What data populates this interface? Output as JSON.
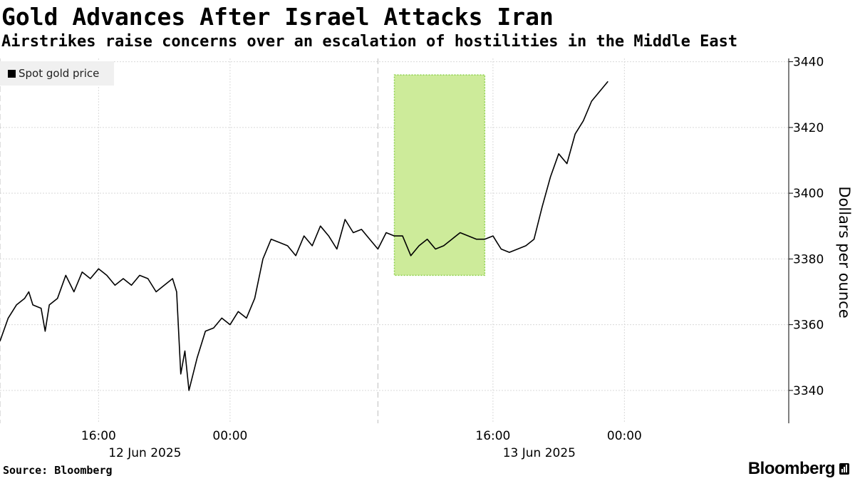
{
  "header": {
    "title": "Gold Advances After Israel Attacks Iran",
    "subtitle": "Airstrikes raise concerns over an escalation of hostilities in the Middle East"
  },
  "legend": {
    "label": "Spot gold price"
  },
  "footer": {
    "source": "Source: Bloomberg",
    "brand": "Bloomberg"
  },
  "colors": {
    "line": "#000000",
    "highlight_fill": "#cdeb9a",
    "highlight_border": "#8fd14f",
    "grid": "#d9d9d9"
  },
  "chart_data": {
    "type": "line",
    "title": "Gold Advances After Israel Attacks Iran",
    "subtitle": "Airstrikes raise concerns over an escalation of hostilities in the Middle East",
    "ylabel": "Dollars per ounce",
    "y_axis_side": "right",
    "ylim": [
      3330,
      3441
    ],
    "yticks": [
      3340,
      3360,
      3380,
      3400,
      3420,
      3440
    ],
    "x_start": "2025-06-11T10:00",
    "x_end": "2025-06-13T10:00",
    "xticks": [
      {
        "x": "2025-06-11T16:00",
        "label": "16:00",
        "sublabel": "12 Jun 2025"
      },
      {
        "x": "2025-06-12T00:00",
        "label": "00:00",
        "sublabel": ""
      },
      {
        "x": "2025-06-12T16:00",
        "label": "16:00",
        "sublabel": "13 Jun 2025"
      },
      {
        "x": "2025-06-13T00:00",
        "label": "00:00",
        "sublabel": ""
      }
    ],
    "session_dividers": [
      "2025-06-11T10:00",
      "2025-06-12T09:00"
    ],
    "highlight": {
      "x_start": "2025-06-12T10:00",
      "x_end": "2025-06-12T15:30",
      "y_start": 3375,
      "y_end": 3436
    },
    "legend_position": "top-left",
    "grid": true,
    "series": [
      {
        "name": "Spot gold price",
        "points": [
          [
            "2025-06-11T10:00",
            3355
          ],
          [
            "2025-06-11T10:30",
            3362
          ],
          [
            "2025-06-11T11:00",
            3366
          ],
          [
            "2025-06-11T11:30",
            3368
          ],
          [
            "2025-06-11T11:45",
            3370
          ],
          [
            "2025-06-11T12:00",
            3366
          ],
          [
            "2025-06-11T12:30",
            3365
          ],
          [
            "2025-06-11T12:45",
            3358
          ],
          [
            "2025-06-11T13:00",
            3366
          ],
          [
            "2025-06-11T13:30",
            3368
          ],
          [
            "2025-06-11T14:00",
            3375
          ],
          [
            "2025-06-11T14:30",
            3370
          ],
          [
            "2025-06-11T15:00",
            3376
          ],
          [
            "2025-06-11T15:30",
            3374
          ],
          [
            "2025-06-11T16:00",
            3377
          ],
          [
            "2025-06-11T16:30",
            3375
          ],
          [
            "2025-06-11T17:00",
            3372
          ],
          [
            "2025-06-11T17:30",
            3374
          ],
          [
            "2025-06-11T18:00",
            3372
          ],
          [
            "2025-06-11T18:30",
            3375
          ],
          [
            "2025-06-11T19:00",
            3374
          ],
          [
            "2025-06-11T19:30",
            3370
          ],
          [
            "2025-06-11T20:00",
            3372
          ],
          [
            "2025-06-11T20:30",
            3374
          ],
          [
            "2025-06-11T20:45",
            3370
          ],
          [
            "2025-06-11T21:00",
            3345
          ],
          [
            "2025-06-11T21:15",
            3352
          ],
          [
            "2025-06-11T21:30",
            3340
          ],
          [
            "2025-06-11T21:45",
            3345
          ],
          [
            "2025-06-11T22:00",
            3350
          ],
          [
            "2025-06-11T22:30",
            3358
          ],
          [
            "2025-06-11T23:00",
            3359
          ],
          [
            "2025-06-11T23:30",
            3362
          ],
          [
            "2025-06-12T00:00",
            3360
          ],
          [
            "2025-06-12T00:30",
            3364
          ],
          [
            "2025-06-12T01:00",
            3362
          ],
          [
            "2025-06-12T01:30",
            3368
          ],
          [
            "2025-06-12T02:00",
            3380
          ],
          [
            "2025-06-12T02:30",
            3386
          ],
          [
            "2025-06-12T03:00",
            3385
          ],
          [
            "2025-06-12T03:30",
            3384
          ],
          [
            "2025-06-12T04:00",
            3381
          ],
          [
            "2025-06-12T04:30",
            3387
          ],
          [
            "2025-06-12T05:00",
            3384
          ],
          [
            "2025-06-12T05:30",
            3390
          ],
          [
            "2025-06-12T06:00",
            3387
          ],
          [
            "2025-06-12T06:30",
            3383
          ],
          [
            "2025-06-12T07:00",
            3392
          ],
          [
            "2025-06-12T07:30",
            3388
          ],
          [
            "2025-06-12T08:00",
            3389
          ],
          [
            "2025-06-12T08:30",
            3386
          ],
          [
            "2025-06-12T09:00",
            3383
          ],
          [
            "2025-06-12T09:30",
            3388
          ],
          [
            "2025-06-12T10:00",
            3387
          ],
          [
            "2025-06-12T10:30",
            3387
          ],
          [
            "2025-06-12T11:00",
            3381
          ],
          [
            "2025-06-12T11:30",
            3384
          ],
          [
            "2025-06-12T12:00",
            3386
          ],
          [
            "2025-06-12T12:30",
            3383
          ],
          [
            "2025-06-12T13:00",
            3384
          ],
          [
            "2025-06-12T13:30",
            3386
          ],
          [
            "2025-06-12T14:00",
            3388
          ],
          [
            "2025-06-12T14:30",
            3387
          ],
          [
            "2025-06-12T15:00",
            3386
          ],
          [
            "2025-06-12T15:30",
            3386
          ],
          [
            "2025-06-12T16:00",
            3387
          ],
          [
            "2025-06-12T16:15",
            3385
          ],
          [
            "2025-06-12T16:30",
            3383
          ],
          [
            "2025-06-12T17:00",
            3382
          ],
          [
            "2025-06-12T17:30",
            3383
          ],
          [
            "2025-06-12T18:00",
            3384
          ],
          [
            "2025-06-12T18:30",
            3386
          ],
          [
            "2025-06-12T19:00",
            3396
          ],
          [
            "2025-06-12T19:30",
            3405
          ],
          [
            "2025-06-12T20:00",
            3412
          ],
          [
            "2025-06-12T20:30",
            3409
          ],
          [
            "2025-06-12T21:00",
            3418
          ],
          [
            "2025-06-12T21:30",
            3422
          ],
          [
            "2025-06-12T22:00",
            3428
          ],
          [
            "2025-06-12T22:30",
            3431
          ],
          [
            "2025-06-12T23:00",
            3434
          ]
        ]
      }
    ]
  }
}
